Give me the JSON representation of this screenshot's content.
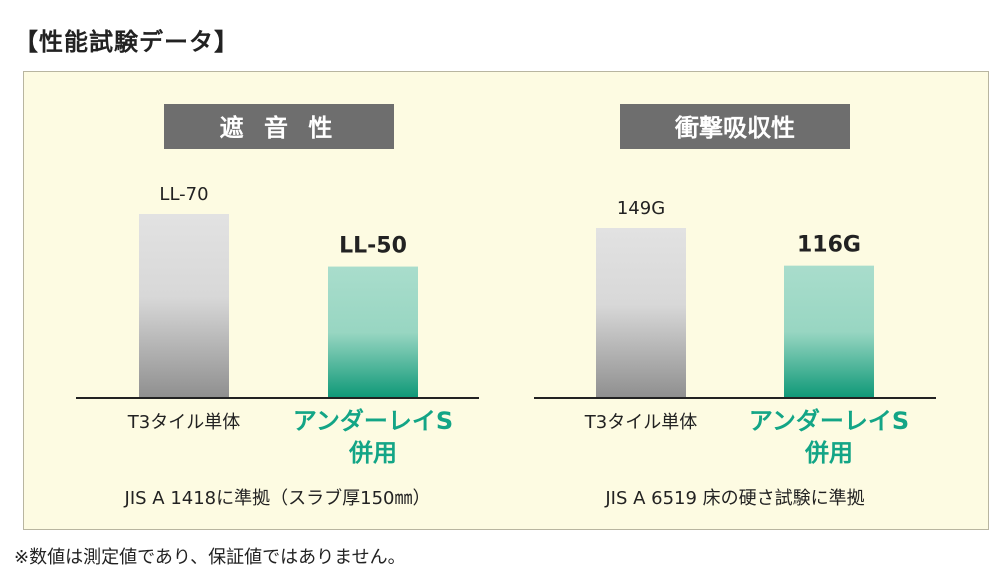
{
  "heading": "【性能試験データ】",
  "footnote": "※数値は測定値であり、保証値ではありません。",
  "colors": {
    "panel_bg": "#fdfbe2",
    "label_box": "#6e6e6e",
    "bar_gray_top": "#e2e2e2",
    "bar_gray_bottom": "#909090",
    "bar_green_top": "#a8dccb",
    "bar_green_bottom": "#0f9a78",
    "accent_text": "#13a586"
  },
  "chart_data": [
    {
      "type": "bar",
      "title": "遮 音 性",
      "categories": [
        "T3タイル単体",
        "アンダーレイS\n併用"
      ],
      "values": [
        70,
        50
      ],
      "value_labels": [
        "LL-70",
        "LL-50"
      ],
      "note": "JIS A 1418に準拠（スラブ厚150㎜）"
    },
    {
      "type": "bar",
      "title": "衝撃吸収性",
      "categories": [
        "T3タイル単体",
        "アンダーレイS\n併用"
      ],
      "values": [
        149,
        116
      ],
      "value_labels": [
        "149G",
        "116G"
      ],
      "note": "JIS A 6519 床の硬さ試験に準拠"
    }
  ]
}
